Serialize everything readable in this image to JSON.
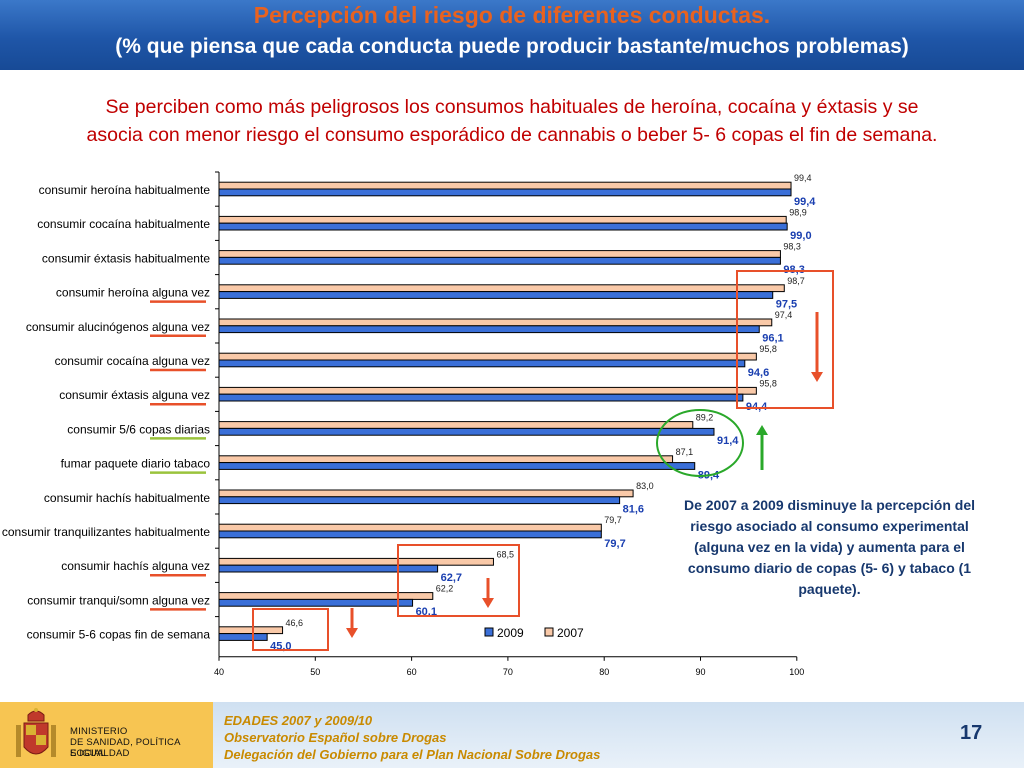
{
  "header": {
    "title": "Percepción del riesgo de diferentes conductas.",
    "subtitle": "(% que piensa que cada conducta puede producir bastante/muchos problemas)"
  },
  "lead": {
    "line1": "Se perciben como más peligrosos los consumos habituales de heroína, cocaína y éxtasis y se",
    "line2": "asocia con menor riesgo el consumo esporádico de cannabis o beber 5- 6 copas el fin de semana."
  },
  "chart_data": {
    "type": "bar",
    "orientation": "horizontal",
    "categories": [
      "consumir heroína habitualmente",
      "consumir cocaína habitualmente",
      "consumir éxtasis habitualmente",
      "consumir heroína alguna vez",
      "consumir alucinógenos alguna vez",
      "consumir cocaína alguna vez",
      "consumir éxtasis alguna vez",
      "consumir 5/6 copas diarias",
      "fumar paquete diario tabaco",
      "consumir hachís habitualmente",
      "consumir tranquilizantes habitualmente",
      "consumir hachís alguna vez",
      "consumir tranqui/somn alguna vez",
      "consumir 5-6 copas fin de semana"
    ],
    "series": [
      {
        "name": "2009",
        "color": "#3a6fd8",
        "values": [
          99.4,
          99.0,
          98.3,
          97.5,
          96.1,
          94.6,
          94.4,
          91.4,
          89.4,
          81.6,
          79.7,
          62.7,
          60.1,
          45.0
        ],
        "labels": [
          "99,4",
          "99,0",
          "98,3",
          "97,5",
          "96,1",
          "94,6",
          "94,4",
          "91,4",
          "89,4",
          "81,6",
          "79,7",
          "62,7",
          "60,1",
          "45,0"
        ]
      },
      {
        "name": "2007",
        "color": "#f9c9a8",
        "values": [
          99.4,
          98.9,
          98.3,
          98.7,
          97.4,
          95.8,
          95.8,
          89.2,
          87.1,
          83.0,
          79.7,
          68.5,
          62.2,
          46.6
        ],
        "labels": [
          "99,4",
          "98,9",
          "98,3",
          "98,7",
          "97,4",
          "95,8",
          "95,8",
          "89,2",
          "87,1",
          "83,0",
          "79,7",
          "68,5",
          "62,2",
          "46,6"
        ]
      }
    ],
    "xlim": [
      40,
      100
    ],
    "xticks": [
      40,
      50,
      60,
      70,
      80,
      90,
      100
    ],
    "legend": "bottom-right",
    "underline_colors": [
      "",
      "",
      "",
      "#e8502a",
      "#e8502a",
      "#e8502a",
      "#e8502a",
      "#9ac33c",
      "#9ac33c",
      "",
      "",
      "#e8502a",
      "#e8502a",
      ""
    ],
    "annotations": {
      "decrease_color": "#e8502a",
      "increase_color": "#2aa82a"
    }
  },
  "note": "De 2007 a 2009 disminuye la percepción del riesgo asociado al consumo experimental (alguna vez en la vida) y aumenta para el consumo diario de copas (5- 6) y tabaco (1 paquete).",
  "footer": {
    "ministry_line1": "MINISTERIO",
    "ministry_line2": "DE SANIDAD, POLÍTICA SOCIAL",
    "ministry_line3": "E IGUALDAD",
    "line1": "EDADES 2007 y 2009/10",
    "line2": "Observatorio Español sobre Drogas",
    "line3": "Delegación del Gobierno para el Plan Nacional Sobre Drogas",
    "page_number": "17"
  }
}
